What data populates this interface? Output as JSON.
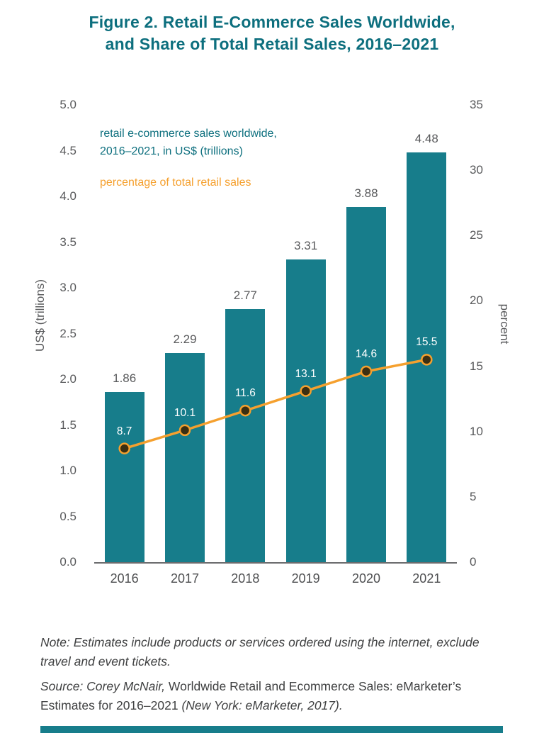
{
  "header": {
    "title_line1": "Figure 2. Retail E-Commerce Sales Worldwide,",
    "title_line2": "and Share of Total Retail Sales, 2016–2021"
  },
  "legend": {
    "bar_series_line1": "retail e-commerce sales worldwide,",
    "bar_series_line2": "2016–2021, in US$ (trillions)",
    "line_series": "percentage of total retail sales"
  },
  "chart_data": {
    "type": "bar",
    "subtype": "combo-bar-line",
    "categories": [
      "2016",
      "2017",
      "2018",
      "2019",
      "2020",
      "2021"
    ],
    "series": [
      {
        "name": "retail e-commerce sales worldwide, 2016–2021, in US$ (trillions)",
        "type": "bar",
        "axis": "left",
        "color": "#177D8B",
        "values": [
          1.86,
          2.29,
          2.77,
          3.31,
          3.88,
          4.48
        ]
      },
      {
        "name": "percentage of total retail sales",
        "type": "line",
        "axis": "right",
        "color": "#F5A02E",
        "marker_color": "#3B2F12",
        "values": [
          8.7,
          10.1,
          11.6,
          13.1,
          14.6,
          15.5
        ]
      }
    ],
    "left_axis": {
      "label": "US$ (trillions)",
      "min": 0,
      "max": 5,
      "step": 0.5,
      "decimals": 1
    },
    "right_axis": {
      "label": "percent",
      "min": 0,
      "max": 35,
      "step": 5,
      "decimals": 0
    },
    "grid": "off",
    "legend_position": "top-left"
  },
  "note": {
    "text": "Note: Estimates include products or services ordered using the internet, exclude travel and event tickets."
  },
  "source": {
    "part1_italic": "Source: Corey McNair, ",
    "part2_roman": "Worldwide Retail and Ecommerce Sales: eMarketer’s Estimates for 2016–2021 ",
    "part3_italic": "(New York: eMarketer, 2017)."
  },
  "colors": {
    "title_teal": "#0D6F7E",
    "bar_teal": "#177D8B",
    "line_orange": "#F5A02E",
    "marker_dark": "#3B2F12",
    "text_gray": "#58595B",
    "footer_band_teal": "#177D8B"
  }
}
